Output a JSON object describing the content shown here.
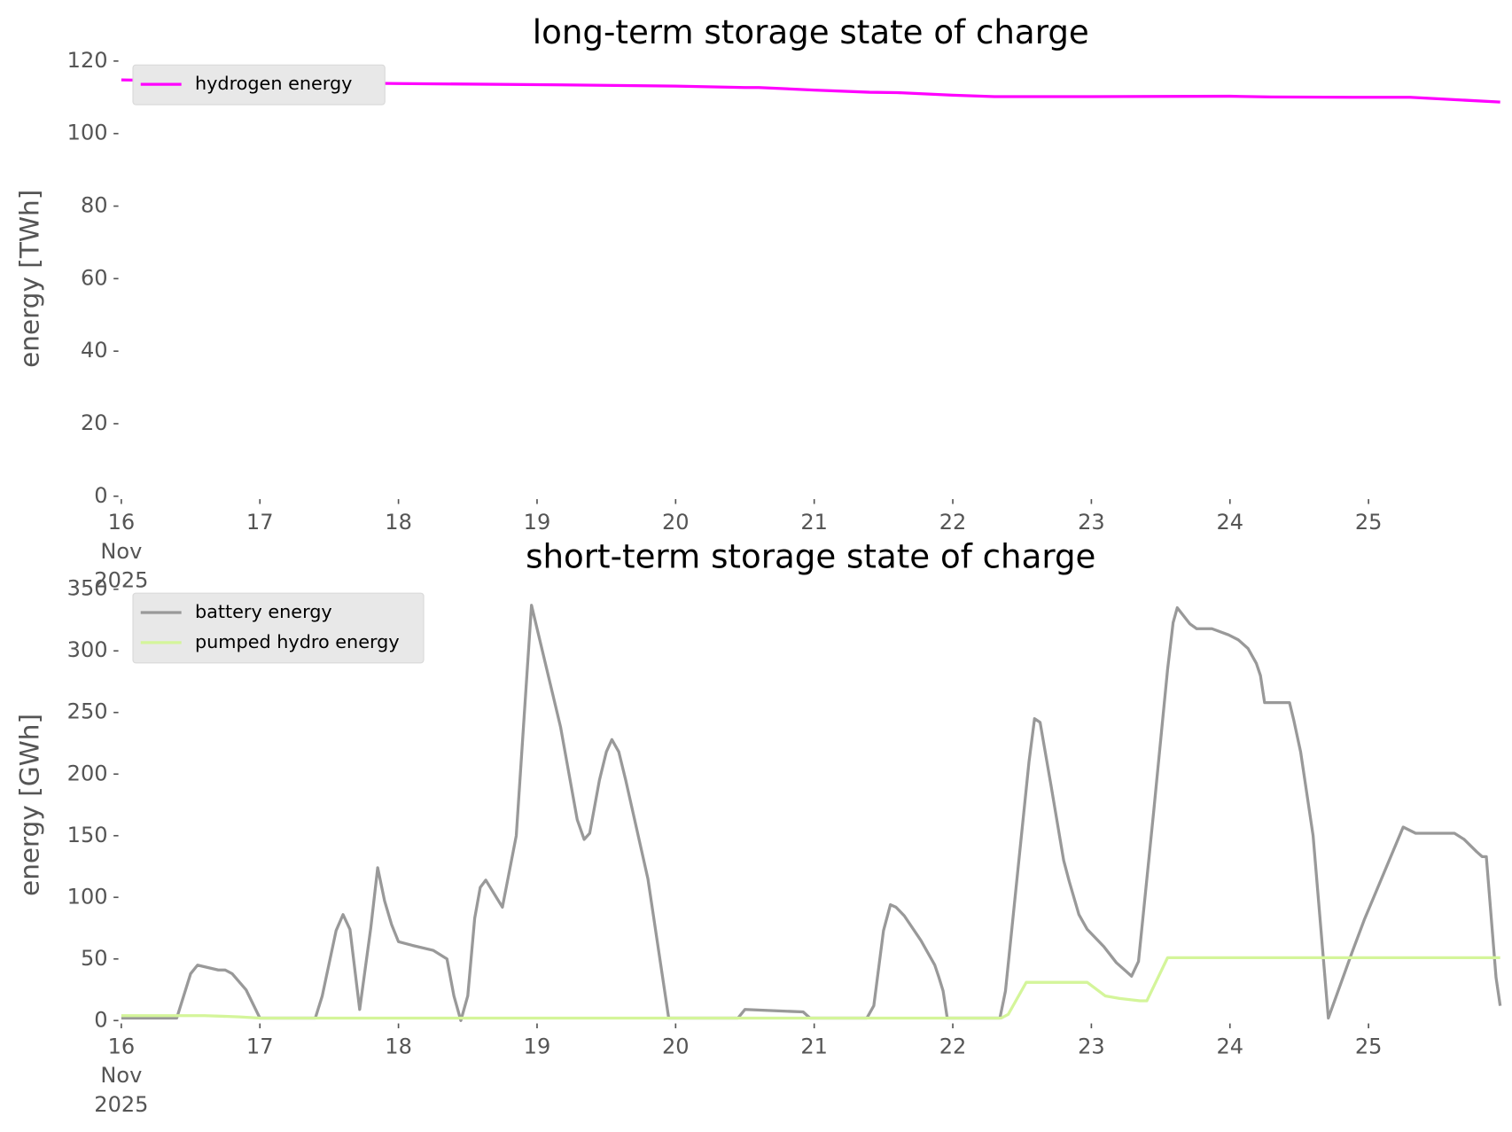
{
  "chart_data": [
    {
      "type": "line",
      "title": "long-term storage state of charge",
      "y_label": "energy [TWh]",
      "xlim": [
        16,
        25.95
      ],
      "ylim": [
        0,
        120
      ],
      "xticks": [
        {
          "value": 16,
          "label": "16\nNov\n2025"
        },
        17,
        18,
        19,
        20,
        21,
        22,
        23,
        24,
        25
      ],
      "yticks": [
        0,
        20,
        40,
        60,
        80,
        100,
        120
      ],
      "legend": "upper left",
      "series": [
        {
          "name": "hydrogen energy",
          "color": "#ff00ff",
          "x": [
            16,
            17,
            18,
            19,
            20,
            20.5,
            20.6,
            21,
            21.4,
            21.6,
            22,
            22.3,
            23,
            24,
            24.3,
            25,
            25.3,
            25.95
          ],
          "values": [
            114.8,
            114.2,
            113.8,
            113.5,
            113.1,
            112.7,
            112.7,
            112,
            111.4,
            111.3,
            110.6,
            110.2,
            110.2,
            110.3,
            110.1,
            110,
            110,
            108.7
          ]
        }
      ]
    },
    {
      "type": "line",
      "title": "short-term storage state of charge",
      "y_label": "energy [GWh]",
      "xlim": [
        16,
        25.95
      ],
      "ylim": [
        0,
        350
      ],
      "xticks": [
        {
          "value": 16,
          "label": "16\nNov\n2025"
        },
        17,
        18,
        19,
        20,
        21,
        22,
        23,
        24,
        25
      ],
      "yticks": [
        0,
        50,
        100,
        150,
        200,
        250,
        300,
        350
      ],
      "legend": "upper left",
      "series": [
        {
          "name": "battery energy",
          "color": "#999999",
          "x": [
            16,
            16.4,
            16.5,
            16.55,
            16.7,
            16.75,
            16.8,
            16.9,
            17,
            17.4,
            17.45,
            17.55,
            17.6,
            17.65,
            17.72,
            17.8,
            17.85,
            17.9,
            17.95,
            18,
            18.1,
            18.25,
            18.35,
            18.4,
            18.45,
            18.5,
            18.55,
            18.59,
            18.63,
            18.75,
            18.85,
            18.96,
            19.17,
            19.29,
            19.34,
            19.38,
            19.45,
            19.5,
            19.54,
            19.59,
            19.64,
            19.8,
            19.95,
            20.45,
            20.5,
            20.92,
            20.97,
            21.38,
            21.43,
            21.5,
            21.55,
            21.59,
            21.65,
            21.77,
            21.87,
            21.9,
            21.93,
            21.96,
            22.34,
            22.38,
            22.55,
            22.59,
            22.63,
            22.71,
            22.8,
            22.84,
            22.91,
            22.97,
            23.09,
            23.18,
            23.29,
            23.34,
            23.45,
            23.55,
            23.59,
            23.62,
            23.71,
            23.76,
            23.87,
            23.99,
            24.06,
            24.13,
            24.19,
            24.22,
            24.25,
            24.43,
            24.46,
            24.51,
            24.6,
            24.71,
            24.88,
            24.97,
            25.25,
            25.34,
            25.62,
            25.69,
            25.78,
            25.82,
            25.85,
            25.92,
            25.95
          ],
          "values": [
            2,
            2,
            38,
            45,
            41,
            41,
            38,
            25,
            2,
            2,
            20,
            73,
            86,
            74,
            9,
            75,
            124,
            97,
            78,
            64,
            61,
            57,
            50,
            20,
            0,
            20,
            83,
            108,
            114,
            92,
            150,
            337,
            238,
            163,
            147,
            152,
            195,
            218,
            228,
            218,
            195,
            115,
            2,
            2,
            9,
            7,
            2,
            2,
            12,
            73,
            94,
            92,
            85,
            65,
            45,
            35,
            24,
            2,
            2,
            24,
            210,
            245,
            242,
            190,
            130,
            113,
            86,
            74,
            60,
            47,
            36,
            48,
            170,
            285,
            323,
            335,
            322,
            318,
            318,
            313,
            309,
            302,
            290,
            280,
            258,
            258,
            244,
            218,
            150,
            2,
            55,
            82,
            157,
            152,
            152,
            147,
            137,
            133,
            133,
            35,
            12
          ]
        },
        {
          "name": "pumped hydro energy",
          "color": "#d4f59a",
          "x": [
            16,
            16.6,
            16.85,
            17,
            22.35,
            22.4,
            22.53,
            22.97,
            23.1,
            23.2,
            23.35,
            23.4,
            23.55,
            25.95
          ],
          "values": [
            4,
            4,
            3,
            2,
            2,
            5,
            31,
            31,
            20,
            18,
            16,
            16,
            51,
            51
          ]
        }
      ]
    }
  ]
}
